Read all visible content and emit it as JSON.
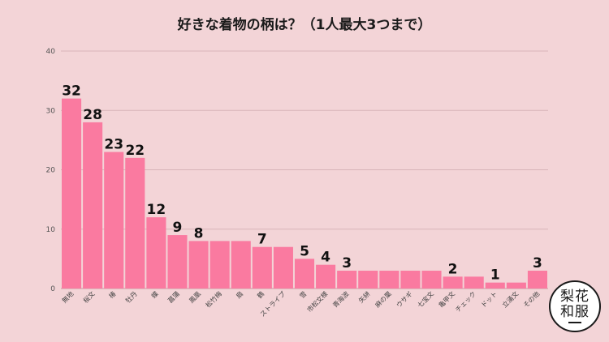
{
  "chart_data": {
    "type": "bar",
    "title": "好きな着物の柄は？（1人最大3つまで）",
    "categories": [
      "無地",
      "桜文",
      "椿",
      "牡丹",
      "蝶",
      "菖蒲",
      "鳳凰",
      "松竹梅",
      "扇",
      "鶴",
      "ストライプ",
      "雪",
      "市松文様",
      "青海波",
      "矢絣",
      "麻の葉",
      "ウサギ",
      "七宝文",
      "亀甲文",
      "チェック",
      "ドット",
      "立涌文",
      "その他"
    ],
    "values": [
      32,
      28,
      23,
      22,
      12,
      9,
      8,
      8,
      8,
      7,
      7,
      5,
      4,
      3,
      3,
      3,
      3,
      3,
      2,
      2,
      1,
      1,
      3
    ],
    "data_labels": [
      "32",
      "28",
      "23",
      "22",
      "12",
      "9",
      "8",
      "",
      "",
      "7",
      "",
      "5",
      "4",
      "3",
      "",
      "",
      "",
      "",
      "2",
      "",
      "1",
      "",
      "3"
    ],
    "ylim": [
      0,
      40
    ],
    "yticks": [
      0,
      10,
      20,
      30,
      40
    ],
    "grid": true,
    "bar_color": "#fa7aa0",
    "background": "#f3d4d7"
  },
  "logo": {
    "row1": "梨花",
    "row2": "和服"
  }
}
